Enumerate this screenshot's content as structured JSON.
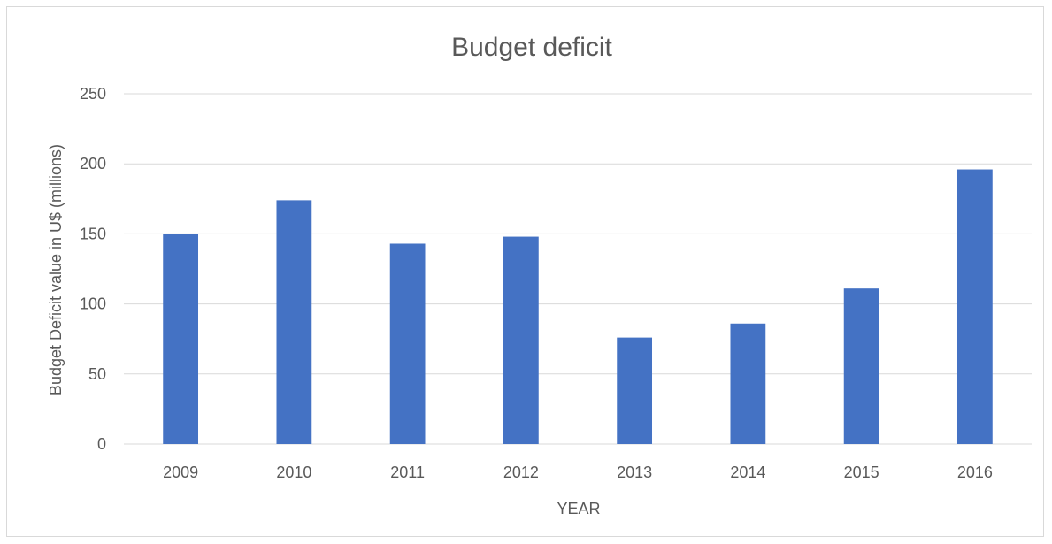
{
  "chart_data": {
    "type": "bar",
    "title": "Budget deficit",
    "xlabel": "YEAR",
    "ylabel": "Budget Deficit value in U$ (millions)",
    "categories": [
      "2009",
      "2010",
      "2011",
      "2012",
      "2013",
      "2014",
      "2015",
      "2016"
    ],
    "values": [
      150,
      174,
      143,
      148,
      76,
      86,
      111,
      196
    ],
    "ylim": [
      0,
      250
    ],
    "yticks": [
      0,
      50,
      100,
      150,
      200,
      250
    ],
    "grid": true,
    "legend": "none",
    "colors": {
      "bar": "#4472c4",
      "grid": "#d9d9d9",
      "text": "#595959"
    }
  }
}
